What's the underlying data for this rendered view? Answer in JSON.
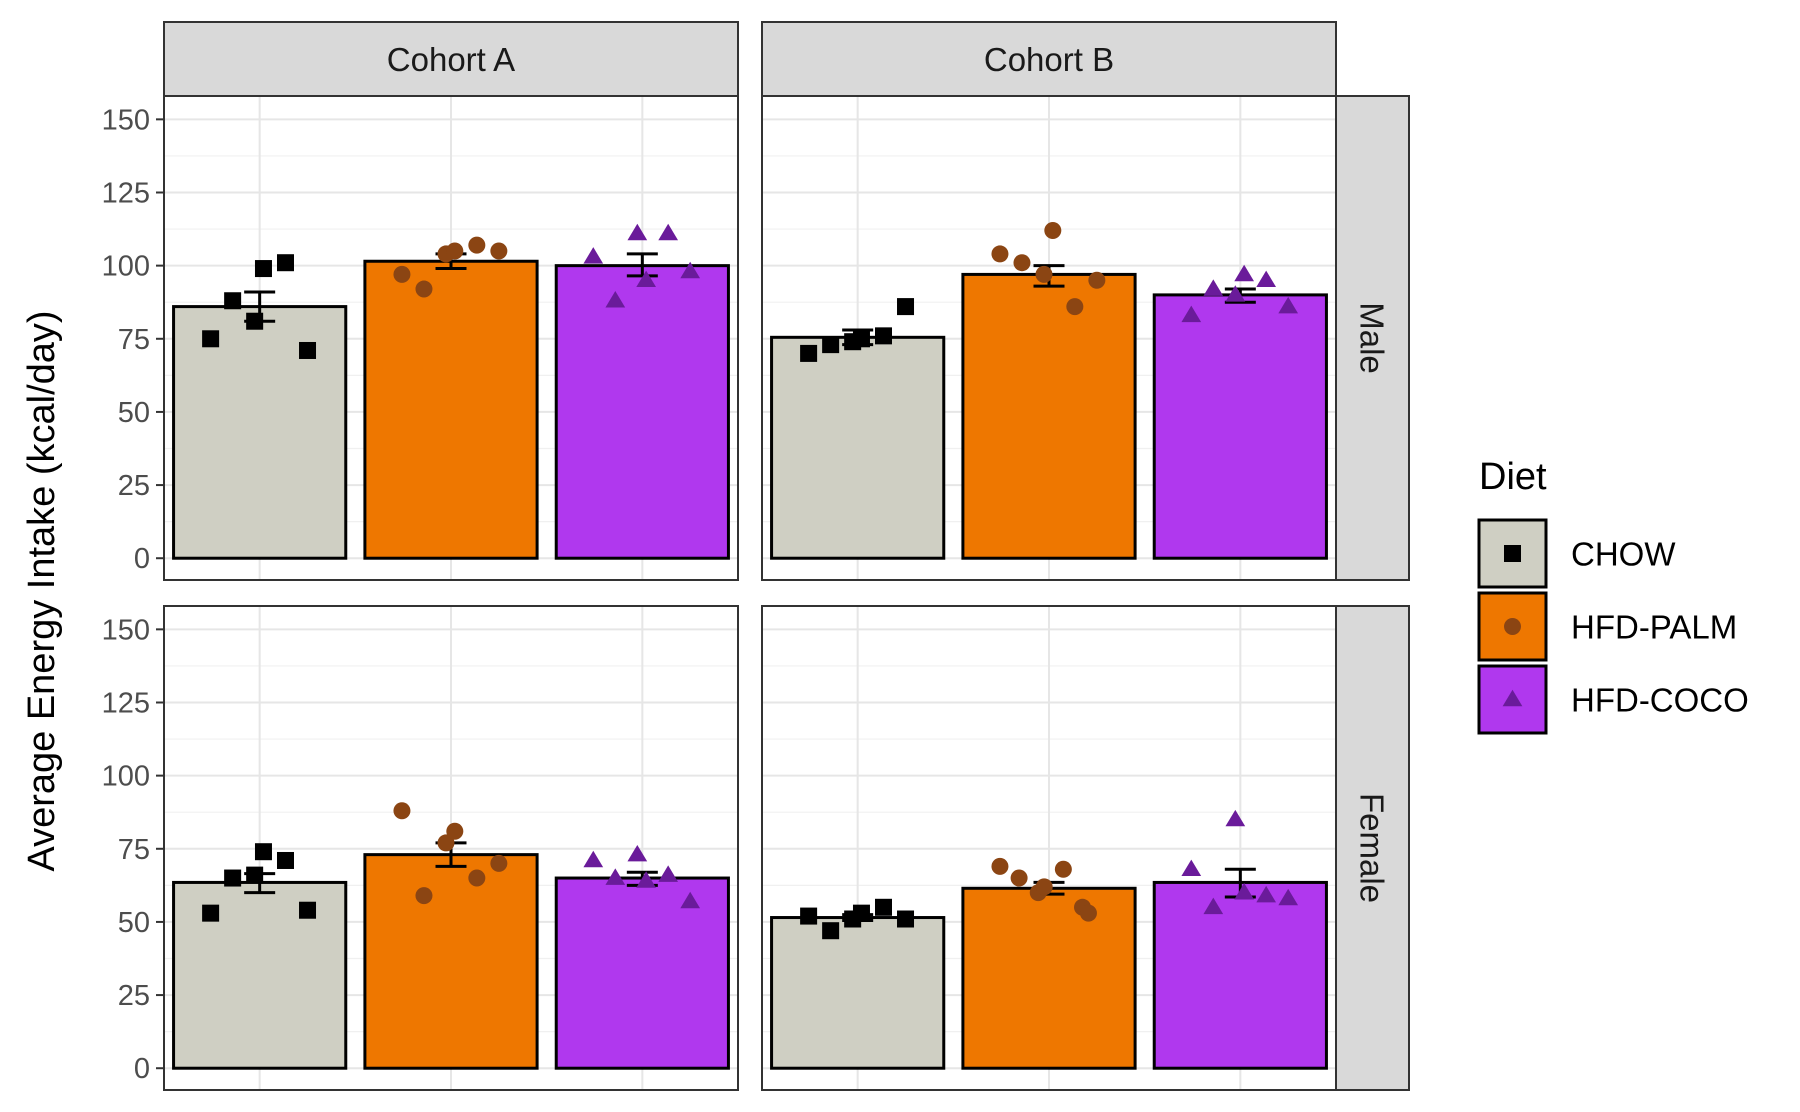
{
  "chart_data": {
    "type": "bar",
    "ylabel": "Average Energy Intake (kcal/day)",
    "xlabel": "",
    "ylim": [
      0,
      155
    ],
    "y_ticks": [
      0,
      25,
      50,
      75,
      100,
      125,
      150
    ],
    "grid": true,
    "legend": {
      "title": "Diet",
      "position": "right",
      "entries": [
        "CHOW",
        "HFD-PALM",
        "HFD-COCO"
      ]
    },
    "facet_columns": [
      "Cohort A",
      "Cohort B"
    ],
    "facet_rows": [
      "Male",
      "Female"
    ],
    "series": [
      {
        "name": "CHOW",
        "color": "#cfcfc3",
        "point_color": "#000000",
        "shape": "square"
      },
      {
        "name": "HFD-PALM",
        "color": "#ee7700",
        "point_color": "#8b4513",
        "shape": "circle"
      },
      {
        "name": "HFD-COCO",
        "color": "#b038ee",
        "point_color": "#6a1b9a",
        "shape": "triangle"
      }
    ],
    "panels": [
      {
        "column": "Cohort A",
        "row": "Male",
        "bars": [
          {
            "diet": "CHOW",
            "mean": 86,
            "se_low": 81,
            "se_high": 91,
            "points": [
              75,
              88,
              81,
              99,
              101,
              71
            ]
          },
          {
            "diet": "HFD-PALM",
            "mean": 101.5,
            "se_low": 99,
            "se_high": 104,
            "points": [
              97,
              92,
              104,
              105,
              107,
              105
            ]
          },
          {
            "diet": "HFD-COCO",
            "mean": 100,
            "se_low": 96.5,
            "se_high": 104,
            "points": [
              103,
              88,
              111,
              95,
              111,
              98
            ]
          }
        ]
      },
      {
        "column": "Cohort B",
        "row": "Male",
        "bars": [
          {
            "diet": "CHOW",
            "mean": 75.5,
            "se_low": 73,
            "se_high": 78,
            "points": [
              70,
              73,
              74,
              75,
              76,
              86
            ]
          },
          {
            "diet": "HFD-PALM",
            "mean": 97,
            "se_low": 93,
            "se_high": 100,
            "points": [
              104,
              101,
              97,
              112,
              86,
              95
            ]
          },
          {
            "diet": "HFD-COCO",
            "mean": 90,
            "se_low": 87.5,
            "se_high": 92,
            "points": [
              83,
              92,
              90,
              97,
              95,
              86
            ]
          }
        ]
      },
      {
        "column": "Cohort A",
        "row": "Female",
        "bars": [
          {
            "diet": "CHOW",
            "mean": 63.5,
            "se_low": 60,
            "se_high": 66.5,
            "points": [
              53,
              65,
              66,
              74,
              71,
              54
            ]
          },
          {
            "diet": "HFD-PALM",
            "mean": 73,
            "se_low": 69,
            "se_high": 77,
            "points": [
              88,
              59,
              77,
              81,
              65,
              70
            ]
          },
          {
            "diet": "HFD-COCO",
            "mean": 65,
            "se_low": 62.5,
            "se_high": 67,
            "points": [
              71,
              65,
              73,
              64,
              66,
              57
            ]
          }
        ]
      },
      {
        "column": "Cohort B",
        "row": "Female",
        "bars": [
          {
            "diet": "CHOW",
            "mean": 51.5,
            "se_low": 50.5,
            "se_high": 52.5,
            "points": [
              52,
              47,
              51,
              53,
              55,
              51
            ]
          },
          {
            "diet": "HFD-PALM",
            "mean": 61.5,
            "se_low": 59.5,
            "se_high": 63.5,
            "points": [
              69,
              65,
              60,
              62,
              68,
              55,
              53
            ]
          },
          {
            "diet": "HFD-COCO",
            "mean": 63.5,
            "se_low": 58.5,
            "se_high": 68,
            "points": [
              68,
              55,
              85,
              60,
              59,
              58
            ]
          }
        ]
      }
    ]
  }
}
